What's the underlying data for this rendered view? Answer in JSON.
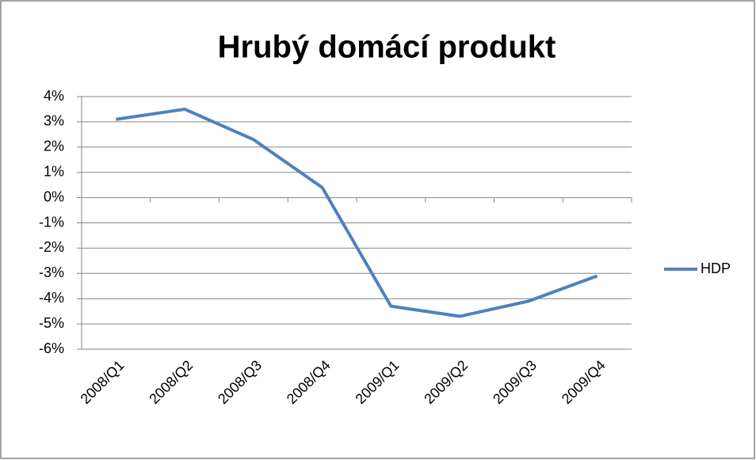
{
  "chart_data": {
    "type": "line",
    "title": "Hrubý domácí produkt",
    "categories": [
      "2008/Q1",
      "2008/Q2",
      "2008/Q3",
      "2008/Q4",
      "2009/Q1",
      "2009/Q2",
      "2009/Q3",
      "2009/Q4"
    ],
    "series": [
      {
        "name": "HDP",
        "color": "#4f81bd",
        "values": [
          3.1,
          3.5,
          2.3,
          0.4,
          -4.3,
          -4.7,
          -4.1,
          -3.1
        ]
      }
    ],
    "ylim": [
      -6,
      4
    ],
    "yticks": [
      {
        "value": -6,
        "label": "-6%"
      },
      {
        "value": -5,
        "label": "-5%"
      },
      {
        "value": -4,
        "label": "-4%"
      },
      {
        "value": -3,
        "label": "-3%"
      },
      {
        "value": -2,
        "label": "-2%"
      },
      {
        "value": -1,
        "label": "-1%"
      },
      {
        "value": 0,
        "label": "0%"
      },
      {
        "value": 1,
        "label": "1%"
      },
      {
        "value": 2,
        "label": "2%"
      },
      {
        "value": 3,
        "label": "3%"
      },
      {
        "value": 4,
        "label": "4%"
      }
    ],
    "grid": true,
    "legend": "right"
  }
}
